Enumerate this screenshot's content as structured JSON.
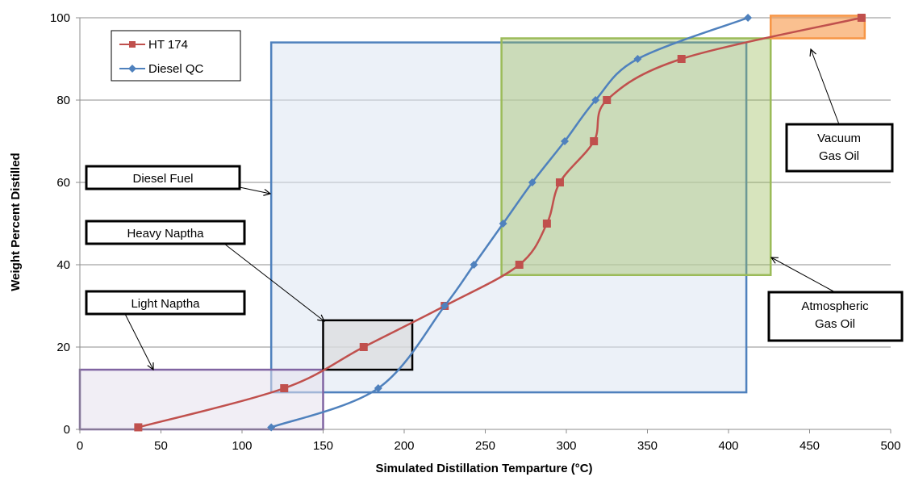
{
  "chart_data": {
    "type": "line",
    "xlabel": "Simulated Distillation Temparture (°C)",
    "ylabel": "Weight Percent Distilled",
    "xlim": [
      0,
      500
    ],
    "ylim": [
      0,
      100
    ],
    "x_ticks": [
      "0",
      "50",
      "100",
      "150",
      "200",
      "250",
      "300",
      "350",
      "400",
      "450",
      "500"
    ],
    "y_ticks": [
      "0",
      "20",
      "40",
      "60",
      "80",
      "100"
    ],
    "grid": "horizontal",
    "legend_position": "top-left",
    "series": [
      {
        "name": "HT 174",
        "color": "#c0504d",
        "marker": "square",
        "x": [
          36,
          126,
          175,
          225,
          271,
          288,
          296,
          317,
          325,
          371,
          482
        ],
        "y": [
          0.5,
          10,
          20,
          30,
          40,
          50,
          60,
          70,
          80,
          90,
          100
        ]
      },
      {
        "name": "Diesel QC",
        "color": "#4f81bd",
        "marker": "diamond",
        "x": [
          118,
          184,
          225,
          243,
          261,
          279,
          299,
          318,
          344,
          412
        ],
        "y": [
          0.5,
          10,
          30,
          40,
          50,
          60,
          70,
          80,
          90,
          100
        ]
      }
    ],
    "regions": [
      {
        "key": "diesel",
        "x": [
          118,
          411
        ],
        "y": [
          9,
          94
        ],
        "fill": "#dce6f2",
        "fill_opacity": 0.55,
        "stroke": "#4f81bd"
      },
      {
        "key": "atmospheric",
        "x": [
          260,
          426
        ],
        "y": [
          37.5,
          95
        ],
        "fill": "#9bbb59",
        "fill_opacity": 0.4,
        "stroke": "#9bbb59"
      },
      {
        "key": "vacuum",
        "x": [
          426,
          484
        ],
        "y": [
          95,
          100.5
        ],
        "fill": "#f79646",
        "fill_opacity": 0.6,
        "stroke": "#f79646"
      },
      {
        "key": "light",
        "x": [
          0,
          150
        ],
        "y": [
          0,
          14.5
        ],
        "fill": "#e6e0ec",
        "fill_opacity": 0.55,
        "stroke": "#8064a2"
      },
      {
        "key": "heavy",
        "x": [
          150,
          205
        ],
        "y": [
          14.5,
          26.5
        ],
        "fill": "#d9d9d9",
        "fill_opacity": 0.6,
        "stroke": "#000000"
      }
    ],
    "annotations": [
      {
        "key": "diesel_fuel",
        "lines": [
          "Diesel Fuel"
        ]
      },
      {
        "key": "heavy_naptha",
        "lines": [
          "Heavy Naptha"
        ]
      },
      {
        "key": "light_naptha",
        "lines": [
          "Light Naptha"
        ]
      },
      {
        "key": "vacuum_gas_oil",
        "lines": [
          "Vacuum",
          "Gas Oil"
        ]
      },
      {
        "key": "atmospheric_gas_oil",
        "lines": [
          "Atmospheric",
          "Gas Oil"
        ]
      }
    ]
  }
}
